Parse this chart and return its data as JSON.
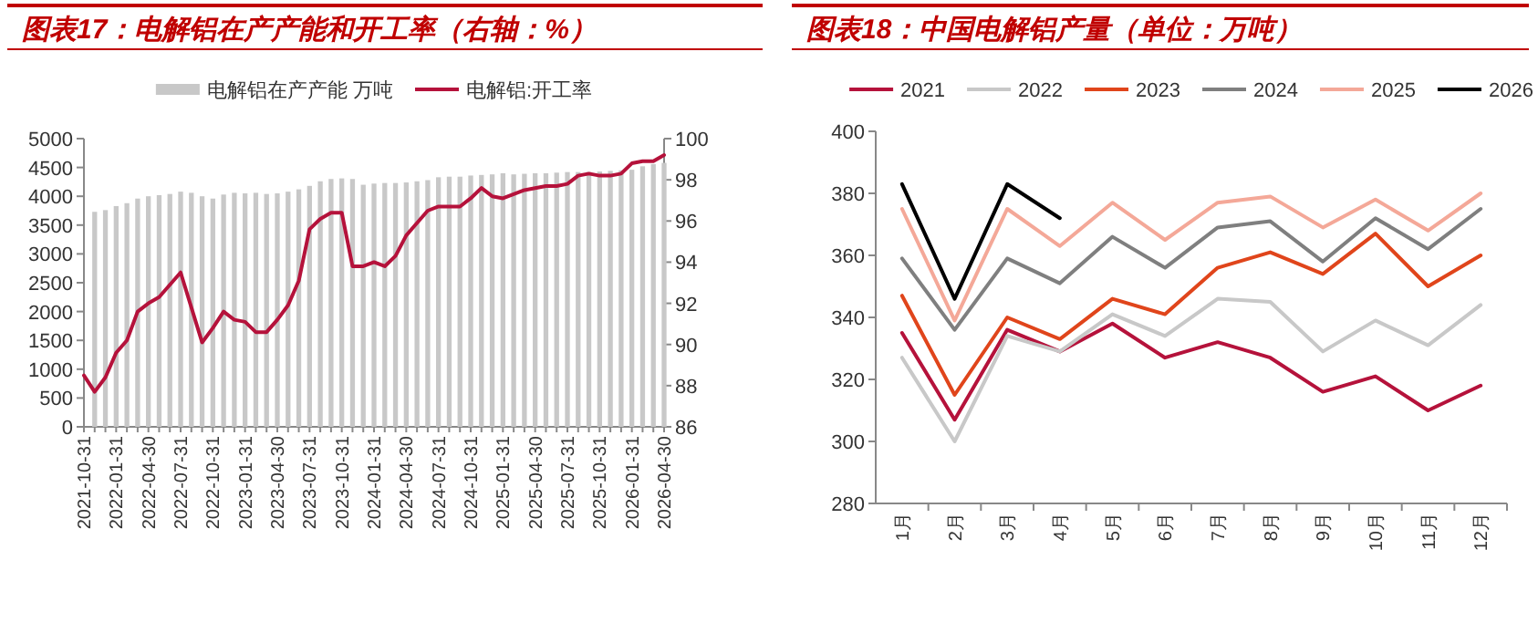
{
  "chart_data": [
    {
      "type": "bar",
      "title": "图表17：电解铝在产产能和开工率（右轴：%）",
      "categories": [
        "2021-10-31",
        null,
        null,
        "2022-01-31",
        null,
        null,
        "2022-04-30",
        null,
        null,
        "2022-07-31",
        null,
        null,
        "2022-10-31",
        null,
        null,
        "2023-01-31",
        null,
        null,
        "2023-04-30",
        null,
        null,
        "2023-07-31",
        null,
        null,
        "2023-10-31",
        null,
        null,
        "2024-01-31",
        null,
        null,
        "2024-04-30",
        null,
        null,
        "2024-07-31",
        null,
        null,
        "2024-10-31",
        null,
        null,
        "2025-01-31",
        null,
        null,
        "2025-04-30",
        null,
        null,
        "2025-07-31",
        null,
        null,
        "2025-10-31",
        null,
        null,
        "2026-01-31",
        null,
        null,
        "2026-04-30"
      ],
      "series": [
        {
          "name": "电解铝在产产能 万吨",
          "type": "bar",
          "color": "#c8c8c8",
          "values": [
            null,
            3730,
            3760,
            3830,
            3880,
            3960,
            4000,
            4020,
            4040,
            4080,
            4060,
            4000,
            3960,
            4030,
            4060,
            4050,
            4060,
            4040,
            4050,
            4080,
            4120,
            4180,
            4260,
            4300,
            4310,
            4300,
            4200,
            4220,
            4230,
            4230,
            4240,
            4260,
            4280,
            4330,
            4340,
            4340,
            4360,
            4370,
            4380,
            4400,
            4380,
            4390,
            4400,
            4400,
            4410,
            4420,
            4420,
            4420,
            4430,
            4440,
            4450,
            4460,
            4520,
            4560,
            4580
          ]
        },
        {
          "name": "电解铝:开工率",
          "type": "line",
          "axis": "y2",
          "color": "#b5123b",
          "values": [
            88.5,
            87.7,
            88.4,
            89.6,
            90.2,
            91.6,
            92.0,
            92.3,
            92.9,
            93.5,
            91.8,
            90.1,
            90.8,
            91.6,
            91.2,
            91.1,
            90.6,
            90.6,
            91.2,
            91.9,
            93.1,
            95.6,
            96.1,
            96.4,
            96.4,
            93.8,
            93.8,
            94.0,
            93.8,
            94.3,
            95.3,
            95.9,
            96.5,
            96.7,
            96.7,
            96.7,
            97.1,
            97.6,
            97.2,
            97.1,
            97.3,
            97.5,
            97.6,
            97.7,
            97.7,
            97.8,
            98.2,
            98.3,
            98.2,
            98.2,
            98.3,
            98.8,
            98.9,
            98.9,
            99.2
          ]
        }
      ],
      "ylim": [
        0,
        5000
      ],
      "yticks": [
        0,
        500,
        1000,
        1500,
        2000,
        2500,
        3000,
        3500,
        4000,
        4500,
        5000
      ],
      "y2lim": [
        86,
        100
      ],
      "y2ticks": [
        86,
        88,
        90,
        92,
        94,
        96,
        98,
        100
      ],
      "legend": "top"
    },
    {
      "type": "line",
      "title": "图表18：中国电解铝产量（单位：万吨）",
      "categories": [
        "1月",
        "2月",
        "3月",
        "4月",
        "5月",
        "6月",
        "7月",
        "8月",
        "9月",
        "10月",
        "11月",
        "12月"
      ],
      "series": [
        {
          "name": "2021",
          "color": "#b5123b",
          "values": [
            335,
            307,
            336,
            329,
            338,
            327,
            332,
            327,
            316,
            321,
            310,
            318
          ]
        },
        {
          "name": "2022",
          "color": "#c8c8c8",
          "values": [
            327,
            300,
            334,
            329,
            341,
            334,
            346,
            345,
            329,
            339,
            331,
            344
          ]
        },
        {
          "name": "2023",
          "color": "#e0451b",
          "values": [
            347,
            315,
            340,
            333,
            346,
            341,
            356,
            361,
            354,
            367,
            350,
            360
          ]
        },
        {
          "name": "2024",
          "color": "#7f7f7f",
          "values": [
            359,
            336,
            359,
            351,
            366,
            356,
            369,
            371,
            358,
            372,
            362,
            375
          ]
        },
        {
          "name": "2025",
          "color": "#f4a898",
          "values": [
            375,
            339,
            375,
            363,
            377,
            365,
            377,
            379,
            369,
            378,
            368,
            380
          ]
        },
        {
          "name": "2026",
          "color": "#000000",
          "values": [
            383,
            346,
            383,
            372,
            null,
            null,
            null,
            null,
            null,
            null,
            null,
            null
          ]
        }
      ],
      "ylim": [
        280,
        400
      ],
      "yticks": [
        280,
        300,
        320,
        340,
        360,
        380,
        400
      ],
      "legend": "top"
    }
  ]
}
